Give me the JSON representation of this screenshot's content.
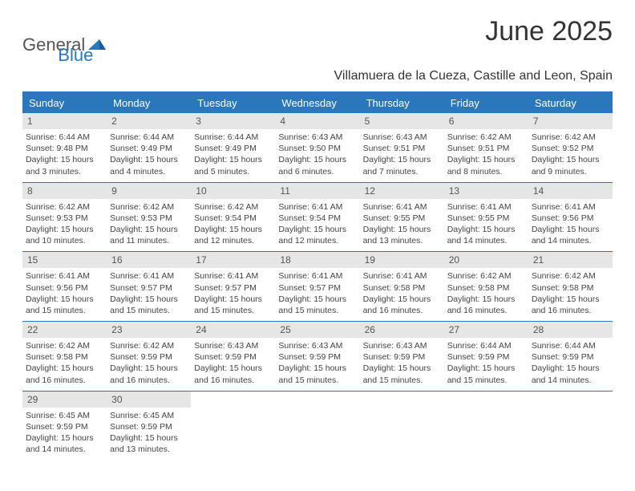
{
  "brand": {
    "part1": "General",
    "part2": "Blue"
  },
  "title": "June 2025",
  "subtitle": "Villamuera de la Cueza, Castille and Leon, Spain",
  "colors": {
    "accent": "#2b77bb",
    "headerBg": "#2b77bb",
    "headerText": "#ffffff",
    "dayNumBg": "#e6e6e6",
    "dayNumText": "#555555",
    "textColor": "#333333",
    "background": "#ffffff"
  },
  "columns": [
    "Sunday",
    "Monday",
    "Tuesday",
    "Wednesday",
    "Thursday",
    "Friday",
    "Saturday"
  ],
  "weeks": [
    [
      {
        "num": "1",
        "l1": "Sunrise: 6:44 AM",
        "l2": "Sunset: 9:48 PM",
        "l3": "Daylight: 15 hours",
        "l4": "and 3 minutes."
      },
      {
        "num": "2",
        "l1": "Sunrise: 6:44 AM",
        "l2": "Sunset: 9:49 PM",
        "l3": "Daylight: 15 hours",
        "l4": "and 4 minutes."
      },
      {
        "num": "3",
        "l1": "Sunrise: 6:44 AM",
        "l2": "Sunset: 9:49 PM",
        "l3": "Daylight: 15 hours",
        "l4": "and 5 minutes."
      },
      {
        "num": "4",
        "l1": "Sunrise: 6:43 AM",
        "l2": "Sunset: 9:50 PM",
        "l3": "Daylight: 15 hours",
        "l4": "and 6 minutes."
      },
      {
        "num": "5",
        "l1": "Sunrise: 6:43 AM",
        "l2": "Sunset: 9:51 PM",
        "l3": "Daylight: 15 hours",
        "l4": "and 7 minutes."
      },
      {
        "num": "6",
        "l1": "Sunrise: 6:42 AM",
        "l2": "Sunset: 9:51 PM",
        "l3": "Daylight: 15 hours",
        "l4": "and 8 minutes."
      },
      {
        "num": "7",
        "l1": "Sunrise: 6:42 AM",
        "l2": "Sunset: 9:52 PM",
        "l3": "Daylight: 15 hours",
        "l4": "and 9 minutes."
      }
    ],
    [
      {
        "num": "8",
        "l1": "Sunrise: 6:42 AM",
        "l2": "Sunset: 9:53 PM",
        "l3": "Daylight: 15 hours",
        "l4": "and 10 minutes."
      },
      {
        "num": "9",
        "l1": "Sunrise: 6:42 AM",
        "l2": "Sunset: 9:53 PM",
        "l3": "Daylight: 15 hours",
        "l4": "and 11 minutes."
      },
      {
        "num": "10",
        "l1": "Sunrise: 6:42 AM",
        "l2": "Sunset: 9:54 PM",
        "l3": "Daylight: 15 hours",
        "l4": "and 12 minutes."
      },
      {
        "num": "11",
        "l1": "Sunrise: 6:41 AM",
        "l2": "Sunset: 9:54 PM",
        "l3": "Daylight: 15 hours",
        "l4": "and 12 minutes."
      },
      {
        "num": "12",
        "l1": "Sunrise: 6:41 AM",
        "l2": "Sunset: 9:55 PM",
        "l3": "Daylight: 15 hours",
        "l4": "and 13 minutes."
      },
      {
        "num": "13",
        "l1": "Sunrise: 6:41 AM",
        "l2": "Sunset: 9:55 PM",
        "l3": "Daylight: 15 hours",
        "l4": "and 14 minutes."
      },
      {
        "num": "14",
        "l1": "Sunrise: 6:41 AM",
        "l2": "Sunset: 9:56 PM",
        "l3": "Daylight: 15 hours",
        "l4": "and 14 minutes."
      }
    ],
    [
      {
        "num": "15",
        "l1": "Sunrise: 6:41 AM",
        "l2": "Sunset: 9:56 PM",
        "l3": "Daylight: 15 hours",
        "l4": "and 15 minutes."
      },
      {
        "num": "16",
        "l1": "Sunrise: 6:41 AM",
        "l2": "Sunset: 9:57 PM",
        "l3": "Daylight: 15 hours",
        "l4": "and 15 minutes."
      },
      {
        "num": "17",
        "l1": "Sunrise: 6:41 AM",
        "l2": "Sunset: 9:57 PM",
        "l3": "Daylight: 15 hours",
        "l4": "and 15 minutes."
      },
      {
        "num": "18",
        "l1": "Sunrise: 6:41 AM",
        "l2": "Sunset: 9:57 PM",
        "l3": "Daylight: 15 hours",
        "l4": "and 15 minutes."
      },
      {
        "num": "19",
        "l1": "Sunrise: 6:41 AM",
        "l2": "Sunset: 9:58 PM",
        "l3": "Daylight: 15 hours",
        "l4": "and 16 minutes."
      },
      {
        "num": "20",
        "l1": "Sunrise: 6:42 AM",
        "l2": "Sunset: 9:58 PM",
        "l3": "Daylight: 15 hours",
        "l4": "and 16 minutes."
      },
      {
        "num": "21",
        "l1": "Sunrise: 6:42 AM",
        "l2": "Sunset: 9:58 PM",
        "l3": "Daylight: 15 hours",
        "l4": "and 16 minutes."
      }
    ],
    [
      {
        "num": "22",
        "l1": "Sunrise: 6:42 AM",
        "l2": "Sunset: 9:58 PM",
        "l3": "Daylight: 15 hours",
        "l4": "and 16 minutes."
      },
      {
        "num": "23",
        "l1": "Sunrise: 6:42 AM",
        "l2": "Sunset: 9:59 PM",
        "l3": "Daylight: 15 hours",
        "l4": "and 16 minutes."
      },
      {
        "num": "24",
        "l1": "Sunrise: 6:43 AM",
        "l2": "Sunset: 9:59 PM",
        "l3": "Daylight: 15 hours",
        "l4": "and 16 minutes."
      },
      {
        "num": "25",
        "l1": "Sunrise: 6:43 AM",
        "l2": "Sunset: 9:59 PM",
        "l3": "Daylight: 15 hours",
        "l4": "and 15 minutes."
      },
      {
        "num": "26",
        "l1": "Sunrise: 6:43 AM",
        "l2": "Sunset: 9:59 PM",
        "l3": "Daylight: 15 hours",
        "l4": "and 15 minutes."
      },
      {
        "num": "27",
        "l1": "Sunrise: 6:44 AM",
        "l2": "Sunset: 9:59 PM",
        "l3": "Daylight: 15 hours",
        "l4": "and 15 minutes."
      },
      {
        "num": "28",
        "l1": "Sunrise: 6:44 AM",
        "l2": "Sunset: 9:59 PM",
        "l3": "Daylight: 15 hours",
        "l4": "and 14 minutes."
      }
    ],
    [
      {
        "num": "29",
        "l1": "Sunrise: 6:45 AM",
        "l2": "Sunset: 9:59 PM",
        "l3": "Daylight: 15 hours",
        "l4": "and 14 minutes."
      },
      {
        "num": "30",
        "l1": "Sunrise: 6:45 AM",
        "l2": "Sunset: 9:59 PM",
        "l3": "Daylight: 15 hours",
        "l4": "and 13 minutes."
      },
      null,
      null,
      null,
      null,
      null
    ]
  ]
}
